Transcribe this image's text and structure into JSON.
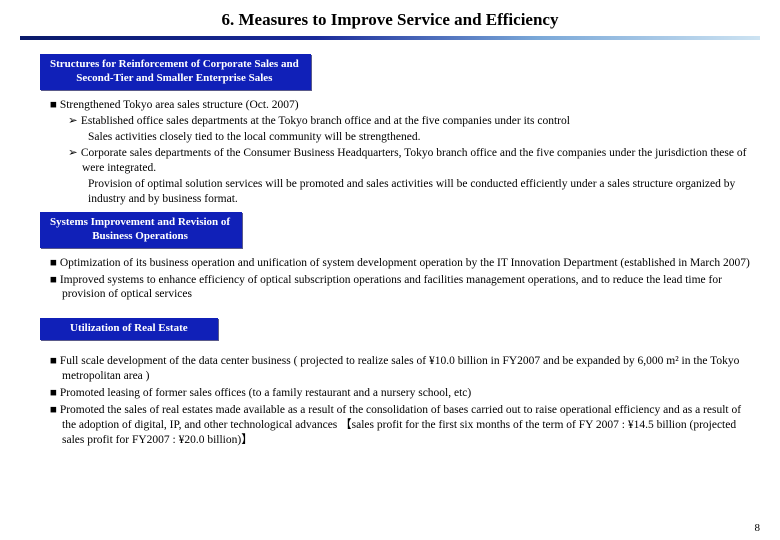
{
  "title": "6. Measures to Improve Service and Efficiency",
  "colors": {
    "header_bg": "#1020b8",
    "header_text": "#ffffff",
    "rule_gradient_start": "#0a1a6a",
    "rule_gradient_end": "#cde3f2"
  },
  "sections": [
    {
      "label": "Structures for Reinforcement of Corporate Sales and\nSecond-Tier and Smaller Enterprise Sales",
      "items": [
        {
          "level": 1,
          "text": "Strengthened Tokyo area sales structure (Oct. 2007)"
        },
        {
          "level": 2,
          "text": "Established office sales departments at the Tokyo branch office and at the five companies under its control"
        },
        {
          "level": 3,
          "text": "Sales activities closely tied to the local community will be strengthened."
        },
        {
          "level": 2,
          "text": "Corporate sales departments of the Consumer Business Headquarters, Tokyo branch office and the five companies under the jurisdiction these of were integrated."
        },
        {
          "level": 3,
          "text": "Provision of optimal solution services will be promoted and sales activities will be conducted efficiently under a sales structure organized by industry and by business format."
        }
      ]
    },
    {
      "label": "Systems Improvement and Revision of\nBusiness Operations",
      "items": [
        {
          "level": 1,
          "text": "Optimization of its business operation and unification of system development operation by the IT Innovation Department (established in March 2007)"
        },
        {
          "level": 1,
          "text": "Improved systems to enhance efficiency of optical subscription operations and facilities management operations, and to reduce the lead time for provision of optical services"
        }
      ]
    },
    {
      "label": "Utilization of Real Estate",
      "items": [
        {
          "level": 1,
          "text": "Full scale development of the data center business ( projected to realize sales of ¥10.0 billion in FY2007 and be expanded by 6,000 m² in the Tokyo metropolitan area )"
        },
        {
          "level": 1,
          "text": "Promoted leasing of former sales offices (to a family restaurant and a nursery school, etc)"
        },
        {
          "level": 1,
          "text": "Promoted the sales of real estates made available as a result of the consolidation of bases carried out to raise operational efficiency and as a result of the adoption of digital, IP, and other technological advances 【sales profit for the first six months of the term of FY 2007 : ¥14.5 billion (projected sales profit for FY2007 : ¥20.0 billion)】"
        }
      ]
    }
  ],
  "page_number": "8"
}
